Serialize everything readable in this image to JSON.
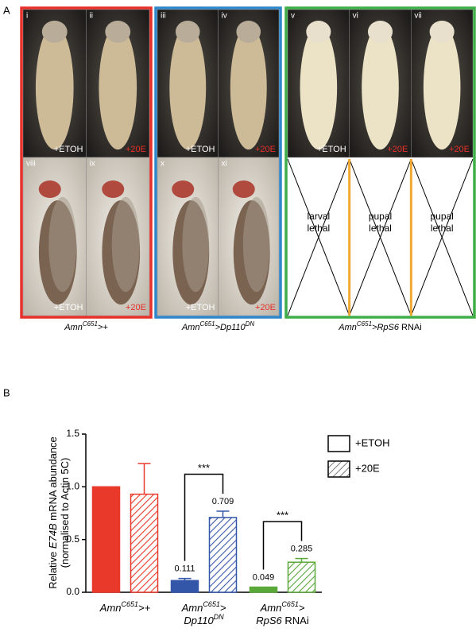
{
  "panel_a": {
    "label": "A",
    "groups": [
      {
        "color": "#e8302a",
        "top": [
          {
            "numeral": "i",
            "treatment": "+ETOH"
          },
          {
            "numeral": "ii",
            "treatment": "+20E"
          }
        ],
        "bottom": [
          {
            "numeral": "viii",
            "treatment": "+ETOH"
          },
          {
            "numeral": "ix",
            "treatment": "+20E"
          }
        ],
        "caption": [
          {
            "text": "Amn",
            "style": "italic"
          },
          {
            "text": "C651",
            "style": "sup"
          },
          {
            "text": ">+",
            "style": "italic"
          }
        ]
      },
      {
        "color": "#2f86c8",
        "top": [
          {
            "numeral": "iii",
            "treatment": "+ETOH"
          },
          {
            "numeral": "iv",
            "treatment": "+20E"
          }
        ],
        "bottom": [
          {
            "numeral": "x",
            "treatment": "+ETOH"
          },
          {
            "numeral": "xi",
            "treatment": "+20E"
          }
        ],
        "caption": [
          {
            "text": "Amn",
            "style": "italic"
          },
          {
            "text": "C651",
            "style": "sup"
          },
          {
            "text": ">Dp110",
            "style": "italic"
          },
          {
            "text": "DN",
            "style": "sup"
          }
        ]
      },
      {
        "color": "#3fae49",
        "top": [
          {
            "numeral": "v",
            "treatment": "+ETOH"
          },
          {
            "numeral": "vi",
            "treatment": "+20E"
          },
          {
            "numeral": "vii",
            "treatment": "+20E"
          }
        ],
        "lethal": [
          [
            "larval",
            "lethal"
          ],
          [
            "pupal",
            "lethal"
          ],
          [
            "pupal",
            "lethal"
          ]
        ],
        "caption": [
          {
            "text": "Amn",
            "style": "italic"
          },
          {
            "text": "C651",
            "style": "sup"
          },
          {
            "text": ">RpS6",
            "style": "italic"
          },
          {
            "text": " RNAi",
            "style": "normal"
          }
        ]
      }
    ],
    "treatment_colors": {
      "+ETOH": "#ffffff",
      "+20E": "#e8302a"
    }
  },
  "chart_data": {
    "type": "bar",
    "panel_label": "B",
    "ylabel": [
      [
        {
          "text": "Relative ",
          "style": "normal"
        },
        {
          "text": "E74B",
          "style": "italic"
        },
        {
          "text": " mRNA abundance",
          "style": "normal"
        }
      ],
      [
        {
          "text": "(normalised to Actin 5C)",
          "style": "normal"
        }
      ]
    ],
    "categories": [
      [
        [
          {
            "text": "Amn",
            "style": "italic"
          },
          {
            "text": "C651",
            "style": "sup"
          },
          {
            "text": ">+",
            "style": "italic"
          }
        ]
      ],
      [
        [
          {
            "text": "Amn",
            "style": "italic"
          },
          {
            "text": "C651",
            "style": "sup"
          },
          {
            "text": ">",
            "style": "italic"
          }
        ],
        [
          {
            "text": "Dp110",
            "style": "italic"
          },
          {
            "text": "DN",
            "style": "sup"
          }
        ]
      ],
      [
        [
          {
            "text": "Amn",
            "style": "italic"
          },
          {
            "text": "C651",
            "style": "sup"
          },
          {
            "text": ">",
            "style": "italic"
          }
        ],
        [
          {
            "text": "RpS6",
            "style": "italic"
          },
          {
            "text": " RNAi",
            "style": "normal"
          }
        ]
      ]
    ],
    "category_colors": [
      "#e8392a",
      "#3456a8",
      "#5aa83a"
    ],
    "series": [
      {
        "name": "+ETOH",
        "pattern": "solid",
        "values": [
          1.0,
          0.111,
          0.049
        ],
        "errors": [
          null,
          0.02,
          null
        ],
        "value_labels": [
          null,
          "0.111",
          "0.049"
        ]
      },
      {
        "name": "+20E",
        "pattern": "hatch",
        "values": [
          0.93,
          0.709,
          0.285
        ],
        "errors": [
          0.29,
          0.06,
          0.035
        ],
        "value_labels": [
          null,
          "0.709",
          "0.285"
        ]
      }
    ],
    "significance": [
      {
        "label": "***",
        "category": 1
      },
      {
        "label": "***",
        "category": 2
      }
    ],
    "ylim": [
      0,
      1.5
    ],
    "yticks": [
      {
        "value": 0,
        "label": "0.0"
      },
      {
        "value": 0.5,
        "label": "0.5"
      },
      {
        "value": 1,
        "label": "1.0"
      },
      {
        "value": 1.5,
        "label": "1.5"
      }
    ]
  }
}
